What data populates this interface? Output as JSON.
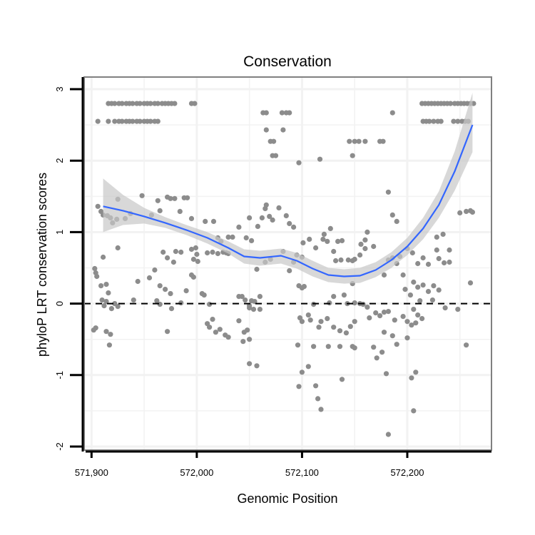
{
  "chart_data": {
    "type": "scatter",
    "title": "Conservation",
    "xlabel": "Genomic Position",
    "ylabel": "phyloP LRT conservation scores",
    "xlim": [
      571893,
      572280
    ],
    "ylim": [
      -2.05,
      3.17
    ],
    "x_ticks": [
      571900,
      572000,
      572100,
      572200
    ],
    "x_tick_labels": [
      "571,900",
      "572,000",
      "572,100",
      "572,200"
    ],
    "y_ticks": [
      -2,
      -1,
      0,
      1,
      2,
      3
    ],
    "y_tick_labels": [
      "-2",
      "-1",
      "0",
      "1",
      "2",
      "3"
    ],
    "grid": true,
    "reference_line": {
      "y": 0,
      "style": "dashed"
    },
    "colors": {
      "points": "#8c8c8c",
      "smooth": "#3366ff",
      "ribbon": "#c8c8c8",
      "grid": "#f2f2f2",
      "panel_border": "#808080",
      "axis": "#000000"
    },
    "points": [
      [
        571916,
        2.8
      ],
      [
        571919,
        2.8
      ],
      [
        571922,
        2.8
      ],
      [
        571926,
        2.8
      ],
      [
        571929,
        2.8
      ],
      [
        571933,
        2.8
      ],
      [
        571936,
        2.8
      ],
      [
        571939,
        2.8
      ],
      [
        571943,
        2.8
      ],
      [
        571946,
        2.8
      ],
      [
        571950,
        2.8
      ],
      [
        571953,
        2.8
      ],
      [
        571956,
        2.8
      ],
      [
        571960,
        2.8
      ],
      [
        571963,
        2.8
      ],
      [
        571967,
        2.8
      ],
      [
        571970,
        2.8
      ],
      [
        571973,
        2.8
      ],
      [
        571976,
        2.8
      ],
      [
        571979,
        2.8
      ],
      [
        571995,
        2.8
      ],
      [
        571998,
        2.8
      ],
      [
        571906,
        2.55
      ],
      [
        571916,
        2.55
      ],
      [
        571922,
        2.55
      ],
      [
        571926,
        2.55
      ],
      [
        571929,
        2.55
      ],
      [
        571933,
        2.55
      ],
      [
        571936,
        2.55
      ],
      [
        571939,
        2.55
      ],
      [
        571943,
        2.55
      ],
      [
        571946,
        2.55
      ],
      [
        571950,
        2.55
      ],
      [
        571953,
        2.55
      ],
      [
        571956,
        2.55
      ],
      [
        571960,
        2.55
      ],
      [
        571963,
        2.55
      ],
      [
        572063,
        2.67
      ],
      [
        572066,
        2.67
      ],
      [
        572081,
        2.67
      ],
      [
        572085,
        2.67
      ],
      [
        572088,
        2.67
      ],
      [
        572066,
        2.43
      ],
      [
        572082,
        2.43
      ],
      [
        572070,
        2.27
      ],
      [
        572073,
        2.27
      ],
      [
        572072,
        2.07
      ],
      [
        572075,
        2.07
      ],
      [
        572097,
        1.97
      ],
      [
        572117,
        2.02
      ],
      [
        572145,
        2.27
      ],
      [
        572150,
        2.27
      ],
      [
        572154,
        2.27
      ],
      [
        572160,
        2.27
      ],
      [
        572174,
        2.27
      ],
      [
        572177,
        2.27
      ],
      [
        572148,
        2.07
      ],
      [
        572186,
        2.67
      ],
      [
        572214,
        2.8
      ],
      [
        572217,
        2.8
      ],
      [
        572220,
        2.8
      ],
      [
        572223,
        2.8
      ],
      [
        572226,
        2.8
      ],
      [
        572229,
        2.8
      ],
      [
        572232,
        2.8
      ],
      [
        572235,
        2.8
      ],
      [
        572238,
        2.8
      ],
      [
        572241,
        2.8
      ],
      [
        572245,
        2.8
      ],
      [
        572248,
        2.8
      ],
      [
        572251,
        2.8
      ],
      [
        572254,
        2.8
      ],
      [
        572257,
        2.8
      ],
      [
        572260,
        2.8
      ],
      [
        572263,
        2.8
      ],
      [
        572215,
        2.55
      ],
      [
        572218,
        2.55
      ],
      [
        572221,
        2.55
      ],
      [
        572225,
        2.55
      ],
      [
        572229,
        2.55
      ],
      [
        572232,
        2.55
      ],
      [
        572244,
        2.55
      ],
      [
        572248,
        2.55
      ],
      [
        572252,
        2.55
      ],
      [
        572255,
        2.55
      ],
      [
        572258,
        2.55
      ],
      [
        571906,
        1.36
      ],
      [
        571909,
        1.29
      ],
      [
        571911,
        1.24
      ],
      [
        571915,
        1.23
      ],
      [
        571918,
        1.2
      ],
      [
        571920,
        1.13
      ],
      [
        571924,
        1.18
      ],
      [
        571925,
        1.46
      ],
      [
        571932,
        1.19
      ],
      [
        571937,
        1.26
      ],
      [
        571948,
        1.51
      ],
      [
        571957,
        1.24
      ],
      [
        571963,
        1.44
      ],
      [
        571965,
        1.3
      ],
      [
        571972,
        1.49
      ],
      [
        571975,
        1.47
      ],
      [
        571979,
        1.47
      ],
      [
        571984,
        1.29
      ],
      [
        571988,
        1.48
      ],
      [
        571991,
        1.48
      ],
      [
        571995,
        1.19
      ],
      [
        571925,
        0.78
      ],
      [
        571911,
        0.65
      ],
      [
        571904,
        0.43
      ],
      [
        571903,
        0.49
      ],
      [
        571909,
        0.25
      ],
      [
        571905,
        0.38
      ],
      [
        571914,
        0.27
      ],
      [
        571916,
        0.15
      ],
      [
        571910,
        0.05
      ],
      [
        571914,
        0.03
      ],
      [
        571922,
        0.0
      ],
      [
        571925,
        -0.04
      ],
      [
        571919,
        -0.07
      ],
      [
        571904,
        -0.34
      ],
      [
        571902,
        -0.37
      ],
      [
        571914,
        -0.39
      ],
      [
        571918,
        -0.43
      ],
      [
        571917,
        -0.58
      ],
      [
        571912,
        -0.03
      ],
      [
        571944,
        0.31
      ],
      [
        571940,
        0.05
      ],
      [
        571955,
        0.36
      ],
      [
        571960,
        0.47
      ],
      [
        571965,
        0.25
      ],
      [
        571970,
        0.2
      ],
      [
        571975,
        0.14
      ],
      [
        571962,
        0.04
      ],
      [
        571965,
        -0.01
      ],
      [
        571976,
        -0.07
      ],
      [
        571968,
        0.72
      ],
      [
        571972,
        0.64
      ],
      [
        571978,
        0.58
      ],
      [
        571980,
        0.73
      ],
      [
        571985,
        0.72
      ],
      [
        571972,
        -0.39
      ],
      [
        571985,
        0.01
      ],
      [
        571990,
        0.18
      ],
      [
        571995,
        0.76
      ],
      [
        571999,
        0.78
      ],
      [
        572000,
        0.69
      ],
      [
        572001,
        0.59
      ],
      [
        571997,
        0.62
      ],
      [
        571995,
        0.4
      ],
      [
        571997,
        0.37
      ],
      [
        572005,
        0.14
      ],
      [
        572007,
        0.12
      ],
      [
        572012,
        -0.01
      ],
      [
        572015,
        -0.22
      ],
      [
        572010,
        -0.28
      ],
      [
        572012,
        -0.33
      ],
      [
        572018,
        -0.4
      ],
      [
        572022,
        -0.36
      ],
      [
        572027,
        -0.44
      ],
      [
        572030,
        -0.47
      ],
      [
        572010,
        0.71
      ],
      [
        572015,
        0.72
      ],
      [
        572020,
        0.7
      ],
      [
        572025,
        0.72
      ],
      [
        572028,
        0.71
      ],
      [
        572030,
        0.7
      ],
      [
        572008,
        1.15
      ],
      [
        572016,
        1.15
      ],
      [
        572020,
        0.92
      ],
      [
        572023,
        0.87
      ],
      [
        572030,
        0.93
      ],
      [
        572034,
        0.93
      ],
      [
        572040,
        0.1
      ],
      [
        572043,
        0.1
      ],
      [
        572046,
        0.05
      ],
      [
        572052,
        0.04
      ],
      [
        572055,
        0.03
      ],
      [
        572060,
        0.1
      ],
      [
        572050,
        -0.06
      ],
      [
        572054,
        -0.08
      ],
      [
        572060,
        -0.08
      ],
      [
        572045,
        -0.4
      ],
      [
        572048,
        -0.37
      ],
      [
        572050,
        -0.5
      ],
      [
        572044,
        -0.53
      ],
      [
        572050,
        -0.84
      ],
      [
        572057,
        -0.87
      ],
      [
        572040,
        -0.24
      ],
      [
        572050,
        -0.03
      ],
      [
        572040,
        1.07
      ],
      [
        572047,
        0.92
      ],
      [
        572052,
        0.88
      ],
      [
        572050,
        1.2
      ],
      [
        572058,
        1.08
      ],
      [
        572062,
        1.2
      ],
      [
        572066,
        1.38
      ],
      [
        572065,
        1.33
      ],
      [
        572069,
        1.22
      ],
      [
        572072,
        1.17
      ],
      [
        572078,
        1.34
      ],
      [
        572085,
        1.23
      ],
      [
        572088,
        1.12
      ],
      [
        572092,
        1.07
      ],
      [
        572057,
        0.48
      ],
      [
        572065,
        0.58
      ],
      [
        572070,
        0.62
      ],
      [
        572082,
        0.73
      ],
      [
        572088,
        0.46
      ],
      [
        572092,
        0.58
      ],
      [
        572095,
        0.68
      ],
      [
        572100,
        0.65
      ],
      [
        572097,
        0.25
      ],
      [
        572100,
        0.22
      ],
      [
        572102,
        0.24
      ],
      [
        572098,
        -0.2
      ],
      [
        572100,
        -0.25
      ],
      [
        572106,
        -0.16
      ],
      [
        572108,
        -0.23
      ],
      [
        572096,
        -0.58
      ],
      [
        572097,
        -1.16
      ],
      [
        572100,
        -0.96
      ],
      [
        572106,
        -0.88
      ],
      [
        572111,
        -0.6
      ],
      [
        572113,
        -1.15
      ],
      [
        572115,
        -1.33
      ],
      [
        572118,
        -1.48
      ],
      [
        572116,
        -0.33
      ],
      [
        572118,
        -0.25
      ],
      [
        572111,
        -0.01
      ],
      [
        572101,
        0.85
      ],
      [
        572107,
        0.9
      ],
      [
        572113,
        0.78
      ],
      [
        572120,
        0.9
      ],
      [
        572121,
        0.97
      ],
      [
        572124,
        0.87
      ],
      [
        572127,
        1.05
      ],
      [
        572130,
        0.73
      ],
      [
        572134,
        0.87
      ],
      [
        572138,
        0.88
      ],
      [
        572132,
        0.6
      ],
      [
        572137,
        0.61
      ],
      [
        572144,
        0.61
      ],
      [
        572148,
        0.6
      ],
      [
        572156,
        0.83
      ],
      [
        572160,
        0.77
      ],
      [
        572162,
        1.0
      ],
      [
        572168,
        0.8
      ],
      [
        572160,
        0.89
      ],
      [
        572155,
        0.68
      ],
      [
        572150,
        0.62
      ],
      [
        572148,
        0.28
      ],
      [
        572126,
        0.01
      ],
      [
        572130,
        0.1
      ],
      [
        572140,
        0.12
      ],
      [
        572143,
        0.0
      ],
      [
        572150,
        0.01
      ],
      [
        572155,
        0.0
      ],
      [
        572158,
        -0.01
      ],
      [
        572162,
        -0.05
      ],
      [
        572170,
        -0.13
      ],
      [
        572174,
        -0.17
      ],
      [
        572178,
        -0.12
      ],
      [
        572182,
        -0.11
      ],
      [
        572188,
        -0.23
      ],
      [
        572124,
        -0.21
      ],
      [
        572130,
        -0.33
      ],
      [
        572136,
        -0.38
      ],
      [
        572142,
        -0.41
      ],
      [
        572146,
        -0.32
      ],
      [
        572150,
        -0.25
      ],
      [
        572164,
        -0.2
      ],
      [
        572125,
        -0.6
      ],
      [
        572136,
        -0.6
      ],
      [
        572148,
        -0.6
      ],
      [
        572150,
        -0.62
      ],
      [
        572168,
        -0.61
      ],
      [
        572171,
        -0.76
      ],
      [
        572176,
        -0.68
      ],
      [
        572180,
        -0.98
      ],
      [
        572138,
        -1.06
      ],
      [
        572182,
        -1.83
      ],
      [
        572186,
        -0.45
      ],
      [
        572190,
        -0.57
      ],
      [
        572178,
        -0.4
      ],
      [
        572178,
        0.4
      ],
      [
        572182,
        0.61
      ],
      [
        572186,
        0.64
      ],
      [
        572193,
        0.66
      ],
      [
        572190,
        0.56
      ],
      [
        572196,
        0.4
      ],
      [
        572200,
        0.77
      ],
      [
        572205,
        0.71
      ],
      [
        572210,
        0.56
      ],
      [
        572215,
        0.64
      ],
      [
        572220,
        0.55
      ],
      [
        572230,
        0.63
      ],
      [
        572235,
        0.57
      ],
      [
        572240,
        0.58
      ],
      [
        572182,
        1.56
      ],
      [
        572186,
        1.24
      ],
      [
        572190,
        1.15
      ],
      [
        572198,
        0.2
      ],
      [
        572203,
        0.12
      ],
      [
        572206,
        0.3
      ],
      [
        572210,
        0.23
      ],
      [
        572215,
        0.26
      ],
      [
        572220,
        0.17
      ],
      [
        572225,
        0.25
      ],
      [
        572230,
        0.19
      ],
      [
        572206,
        -0.08
      ],
      [
        572210,
        -0.16
      ],
      [
        572196,
        -0.18
      ],
      [
        572200,
        -0.25
      ],
      [
        572204,
        -0.3
      ],
      [
        572208,
        -0.27
      ],
      [
        572214,
        -0.21
      ],
      [
        572236,
        -0.06
      ],
      [
        572248,
        -0.08
      ],
      [
        572256,
        -0.58
      ],
      [
        572200,
        -0.48
      ],
      [
        572208,
        -0.96
      ],
      [
        572204,
        -1.04
      ],
      [
        572206,
        -1.5
      ],
      [
        572212,
        0.04
      ],
      [
        572224,
        0.05
      ],
      [
        572228,
        0.93
      ],
      [
        572234,
        0.97
      ],
      [
        572228,
        0.75
      ],
      [
        572240,
        0.75
      ],
      [
        572250,
        1.27
      ],
      [
        572256,
        1.29
      ],
      [
        572260,
        1.3
      ],
      [
        572262,
        1.28
      ],
      [
        572260,
        0.29
      ]
    ],
    "smooth": {
      "x": [
        571911,
        571930,
        571950,
        571970,
        571990,
        572010,
        572030,
        572045,
        572060,
        572080,
        572095,
        572110,
        572125,
        572140,
        572155,
        572170,
        572185,
        572200,
        572215,
        572230,
        572245,
        572262
      ],
      "y": [
        1.36,
        1.3,
        1.22,
        1.13,
        1.03,
        0.92,
        0.78,
        0.66,
        0.64,
        0.67,
        0.6,
        0.49,
        0.4,
        0.38,
        0.39,
        0.47,
        0.61,
        0.8,
        1.05,
        1.38,
        1.85,
        2.5
      ],
      "lower": [
        1.0,
        1.1,
        1.12,
        1.06,
        0.96,
        0.84,
        0.7,
        0.56,
        0.53,
        0.56,
        0.49,
        0.38,
        0.3,
        0.28,
        0.29,
        0.37,
        0.5,
        0.68,
        0.9,
        1.2,
        1.58,
        2.12
      ],
      "upper": [
        1.75,
        1.52,
        1.34,
        1.21,
        1.1,
        1.0,
        0.87,
        0.76,
        0.74,
        0.77,
        0.71,
        0.6,
        0.5,
        0.48,
        0.5,
        0.58,
        0.72,
        0.92,
        1.2,
        1.57,
        2.13,
        2.95
      ]
    }
  }
}
